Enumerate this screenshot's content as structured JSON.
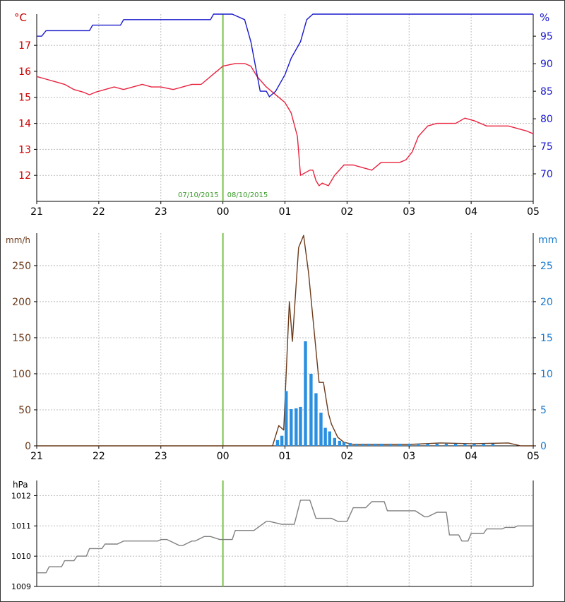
{
  "chart_data": [
    {
      "type": "line",
      "x_tick_labels": [
        "21",
        "22",
        "23",
        "00",
        "01",
        "02",
        "03",
        "04",
        "05"
      ],
      "y_left_unit": "°C",
      "y_right_unit": "%",
      "y_left_ticks": [
        "12",
        "13",
        "14",
        "15",
        "16",
        "17"
      ],
      "y_right_ticks": [
        "70",
        "75",
        "80",
        "85",
        "90",
        "95"
      ],
      "ylim_left": [
        11.0,
        18.2
      ],
      "ylim_right": [
        65,
        99
      ],
      "xlim_hours": [
        0,
        8
      ],
      "date_marker": {
        "x_hour": 3,
        "left_label": "07/10/2015",
        "right_label": "08/10/2015",
        "color": "#7ac24b"
      },
      "grid": true,
      "series": [
        {
          "axis": "left",
          "color": "#e8233f",
          "x": [
            0,
            0.15,
            0.3,
            0.45,
            0.6,
            0.75,
            0.85,
            0.95,
            1.1,
            1.25,
            1.4,
            1.55,
            1.7,
            1.85,
            2.0,
            2.2,
            2.35,
            2.5,
            2.65,
            2.85,
            3.0,
            3.2,
            3.35,
            3.45,
            3.55,
            3.7,
            3.85,
            4.0,
            4.1,
            4.2,
            4.25,
            4.4,
            4.45,
            4.5,
            4.55,
            4.6,
            4.7,
            4.8,
            4.95,
            5.1,
            5.25,
            5.4,
            5.55,
            5.7,
            5.85,
            5.95,
            6.05,
            6.15,
            6.3,
            6.45,
            6.6,
            6.75,
            6.9,
            7.05,
            7.25,
            7.45,
            7.6,
            7.75,
            7.9,
            8.0
          ],
          "y": [
            15.8,
            15.7,
            15.6,
            15.5,
            15.3,
            15.2,
            15.1,
            15.2,
            15.3,
            15.4,
            15.3,
            15.4,
            15.5,
            15.4,
            15.4,
            15.3,
            15.4,
            15.5,
            15.5,
            15.9,
            16.2,
            16.3,
            16.3,
            16.2,
            15.8,
            15.4,
            15.1,
            14.8,
            14.4,
            13.5,
            12.0,
            12.2,
            12.2,
            11.8,
            11.6,
            11.7,
            11.6,
            12.0,
            12.4,
            12.4,
            12.3,
            12.2,
            12.5,
            12.5,
            12.5,
            12.6,
            12.9,
            13.5,
            13.9,
            14.0,
            14.0,
            14.0,
            14.2,
            14.1,
            13.9,
            13.9,
            13.9,
            13.8,
            13.7,
            13.6
          ]
        },
        {
          "axis": "right",
          "color": "#1a1acc",
          "x": [
            0,
            0.08,
            0.15,
            0.3,
            0.6,
            0.85,
            0.9,
            1.1,
            1.35,
            1.4,
            1.6,
            1.8,
            2.0,
            2.2,
            2.5,
            2.8,
            2.85,
            2.9,
            3.0,
            3.05,
            3.15,
            3.35,
            3.45,
            3.5,
            3.6,
            3.7,
            3.75,
            3.85,
            4.0,
            4.1,
            4.25,
            4.35,
            4.45,
            4.55,
            4.7,
            4.85,
            5.0,
            5.3,
            5.65,
            5.8,
            6.0,
            6.5,
            7.0,
            8.0
          ],
          "y": [
            95,
            95,
            96,
            96,
            96,
            96,
            97,
            97,
            97,
            98,
            98,
            98,
            98,
            98,
            98,
            98,
            99,
            99,
            99,
            99,
            99,
            98,
            94,
            91,
            85,
            85,
            84,
            85,
            88,
            91,
            94,
            98,
            99,
            99,
            99,
            99,
            99,
            99,
            99,
            99,
            99,
            99,
            99,
            99
          ]
        }
      ]
    },
    {
      "type": "line",
      "x_tick_labels": [
        "21",
        "22",
        "23",
        "00",
        "01",
        "02",
        "03",
        "04",
        "05"
      ],
      "y_left_unit": "mm/h",
      "y_right_unit": "mm",
      "y_left_ticks": [
        "0",
        "50",
        "100",
        "150",
        "200",
        "250"
      ],
      "y_right_ticks": [
        "0",
        "5",
        "10",
        "15",
        "20",
        "25"
      ],
      "ylim_left": [
        0,
        295
      ],
      "ylim_right": [
        0,
        29.5
      ],
      "xlim_hours": [
        0,
        8
      ],
      "date_marker": {
        "x_hour": 3,
        "color": "#7ac24b"
      },
      "grid": true,
      "series": [
        {
          "axis": "left",
          "kind": "line",
          "color": "#6b3a1a",
          "x": [
            0,
            3.8,
            3.9,
            3.98,
            4.07,
            4.12,
            4.22,
            4.3,
            4.38,
            4.55,
            4.62,
            4.7,
            4.75,
            4.85,
            4.95,
            5.1,
            5.5,
            6.0,
            6.5,
            7.0,
            7.6,
            7.8,
            8.0
          ],
          "y": [
            0,
            0,
            28,
            22,
            200,
            145,
            275,
            292,
            240,
            88,
            88,
            45,
            30,
            12,
            5,
            2,
            2,
            2,
            4,
            3,
            4,
            0,
            0
          ]
        },
        {
          "axis": "right",
          "kind": "bar",
          "color": "#2b8fe0",
          "x": [
            3.88,
            3.95,
            4.02,
            4.1,
            4.18,
            4.25,
            4.33,
            4.42,
            4.5,
            4.58,
            4.65,
            4.72,
            4.8,
            4.88,
            4.95,
            5.05,
            5.15,
            5.25,
            5.35,
            5.45,
            5.55,
            5.7,
            5.85,
            6.0,
            6.15,
            6.3,
            6.45,
            6.6,
            6.75,
            6.9,
            7.05,
            7.2,
            7.35
          ],
          "y": [
            0.8,
            1.4,
            7.6,
            5.1,
            5.2,
            5.4,
            14.5,
            10.0,
            7.3,
            4.6,
            2.5,
            2.0,
            1.1,
            0.7,
            0.5,
            0.4,
            0.3,
            0.3,
            0.3,
            0.3,
            0.3,
            0.3,
            0.3,
            0.3,
            0.3,
            0.3,
            0.3,
            0.3,
            0.3,
            0.3,
            0.3,
            0.3,
            0.3
          ]
        }
      ]
    },
    {
      "type": "line",
      "y_left_unit": "hPa",
      "y_left_ticks": [
        "1009",
        "1010",
        "1011",
        "1012"
      ],
      "ylim_left": [
        1009,
        1012.5
      ],
      "xlim_hours": [
        0,
        8
      ],
      "date_marker": {
        "x_hour": 3,
        "color": "#7ac24b"
      },
      "grid": true,
      "series": [
        {
          "axis": "left",
          "color": "#808080",
          "x": [
            0,
            0.15,
            0.2,
            0.4,
            0.45,
            0.6,
            0.65,
            0.8,
            0.85,
            1.05,
            1.1,
            1.3,
            1.4,
            1.55,
            1.95,
            2.0,
            2.1,
            2.3,
            2.35,
            2.5,
            2.55,
            2.7,
            2.8,
            2.95,
            3.0,
            3.15,
            3.2,
            3.45,
            3.5,
            3.7,
            3.75,
            3.95,
            4.0,
            4.15,
            4.25,
            4.4,
            4.5,
            4.75,
            4.85,
            5.0,
            5.1,
            5.3,
            5.4,
            5.55,
            5.6,
            5.65,
            5.75,
            6.0,
            6.1,
            6.25,
            6.3,
            6.45,
            6.5,
            6.6,
            6.65,
            6.8,
            6.85,
            6.95,
            7.0,
            7.2,
            7.25,
            7.5,
            7.55,
            7.7,
            7.75,
            8.0
          ],
          "y": [
            1009.45,
            1009.45,
            1009.65,
            1009.65,
            1009.85,
            1009.85,
            1010.0,
            1010.0,
            1010.25,
            1010.25,
            1010.4,
            1010.4,
            1010.5,
            1010.5,
            1010.5,
            1010.55,
            1010.55,
            1010.35,
            1010.35,
            1010.5,
            1010.5,
            1010.65,
            1010.65,
            1010.55,
            1010.55,
            1010.55,
            1010.85,
            1010.85,
            1010.85,
            1011.15,
            1011.15,
            1011.05,
            1011.05,
            1011.05,
            1011.85,
            1011.85,
            1011.25,
            1011.25,
            1011.15,
            1011.15,
            1011.6,
            1011.6,
            1011.8,
            1011.8,
            1011.8,
            1011.5,
            1011.5,
            1011.5,
            1011.5,
            1011.3,
            1011.3,
            1011.45,
            1011.45,
            1011.45,
            1010.7,
            1010.7,
            1010.5,
            1010.5,
            1010.75,
            1010.75,
            1010.9,
            1010.9,
            1010.95,
            1010.95,
            1011.0,
            1011.0
          ]
        }
      ]
    }
  ]
}
